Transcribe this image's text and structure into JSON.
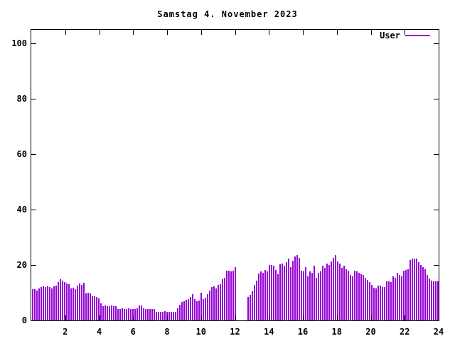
{
  "title": "Samstag 4. November 2023",
  "legend": {
    "label": "User",
    "position": "top-right-inside"
  },
  "colors": {
    "series": "#9400D3",
    "axis": "#000000",
    "text": "#000000",
    "background": "#ffffff"
  },
  "chart_data": {
    "type": "bar",
    "title": "Samstag 4. November 2023",
    "xlabel": "",
    "ylabel": "",
    "x_unit": "hour_of_day",
    "xlim": [
      0,
      24
    ],
    "ylim": [
      0,
      105
    ],
    "x_tick_labels": [
      2,
      4,
      6,
      8,
      10,
      12,
      14,
      16,
      18,
      20,
      22,
      24
    ],
    "y_tick_labels": [
      0,
      20,
      40,
      60,
      80,
      100
    ],
    "grid": false,
    "legend_position": "top-right",
    "series": [
      {
        "name": "User",
        "color": "#9400D3",
        "points_per_hour": 8,
        "values": [
          11.4,
          11.4,
          10.8,
          11.6,
          12.0,
          12.2,
          12.0,
          12.2,
          12.0,
          11.6,
          12.2,
          12.6,
          13.8,
          15.0,
          14.4,
          13.9,
          13.3,
          13.0,
          11.6,
          11.8,
          11.4,
          12.5,
          13.3,
          12.8,
          13.5,
          9.8,
          10.0,
          9.7,
          8.7,
          8.7,
          8.5,
          7.9,
          6.1,
          5.2,
          5.3,
          5.2,
          5.2,
          5.3,
          5.2,
          5.2,
          4.2,
          4.2,
          4.3,
          4.2,
          4.2,
          4.3,
          4.2,
          4.2,
          4.2,
          4.3,
          5.3,
          5.3,
          4.3,
          4.2,
          4.2,
          4.2,
          4.2,
          4.1,
          3.1,
          3.1,
          3.2,
          3.1,
          3.3,
          3.1,
          3.1,
          3.0,
          3.1,
          3.1,
          4.4,
          5.6,
          6.6,
          7.0,
          7.4,
          7.8,
          8.6,
          9.5,
          7.8,
          7.0,
          7.2,
          9.9,
          7.8,
          8.2,
          9.5,
          10.8,
          12.0,
          12.4,
          11.6,
          12.8,
          13.2,
          14.9,
          15.3,
          17.9,
          17.9,
          17.8,
          18.0,
          19.3,
          null,
          null,
          null,
          null,
          null,
          8.4,
          9.2,
          10.4,
          12.9,
          14.5,
          16.9,
          17.6,
          17.2,
          18.1,
          17.6,
          20.0,
          20.0,
          19.7,
          18.1,
          16.8,
          20.2,
          20.6,
          19.7,
          21.0,
          22.3,
          19.3,
          21.5,
          23.2,
          23.6,
          22.7,
          18.0,
          17.6,
          19.3,
          15.9,
          17.6,
          17.2,
          19.7,
          15.5,
          17.2,
          17.6,
          19.7,
          19.1,
          20.6,
          20.1,
          21.4,
          22.7,
          23.5,
          21.4,
          20.6,
          18.9,
          19.7,
          18.4,
          17.9,
          16.4,
          15.8,
          17.9,
          17.6,
          17.2,
          16.8,
          16.4,
          15.5,
          14.6,
          13.8,
          12.8,
          11.9,
          11.6,
          12.5,
          12.5,
          12.1,
          12.1,
          14.2,
          14.2,
          13.8,
          15.9,
          15.5,
          17.2,
          16.3,
          15.9,
          18.0,
          18.2,
          18.4,
          21.9,
          22.3,
          22.3,
          22.3,
          21.0,
          19.9,
          19.3,
          18.5,
          16.3,
          15.1,
          14.4,
          14.2,
          14.2,
          14.2
        ]
      }
    ]
  }
}
